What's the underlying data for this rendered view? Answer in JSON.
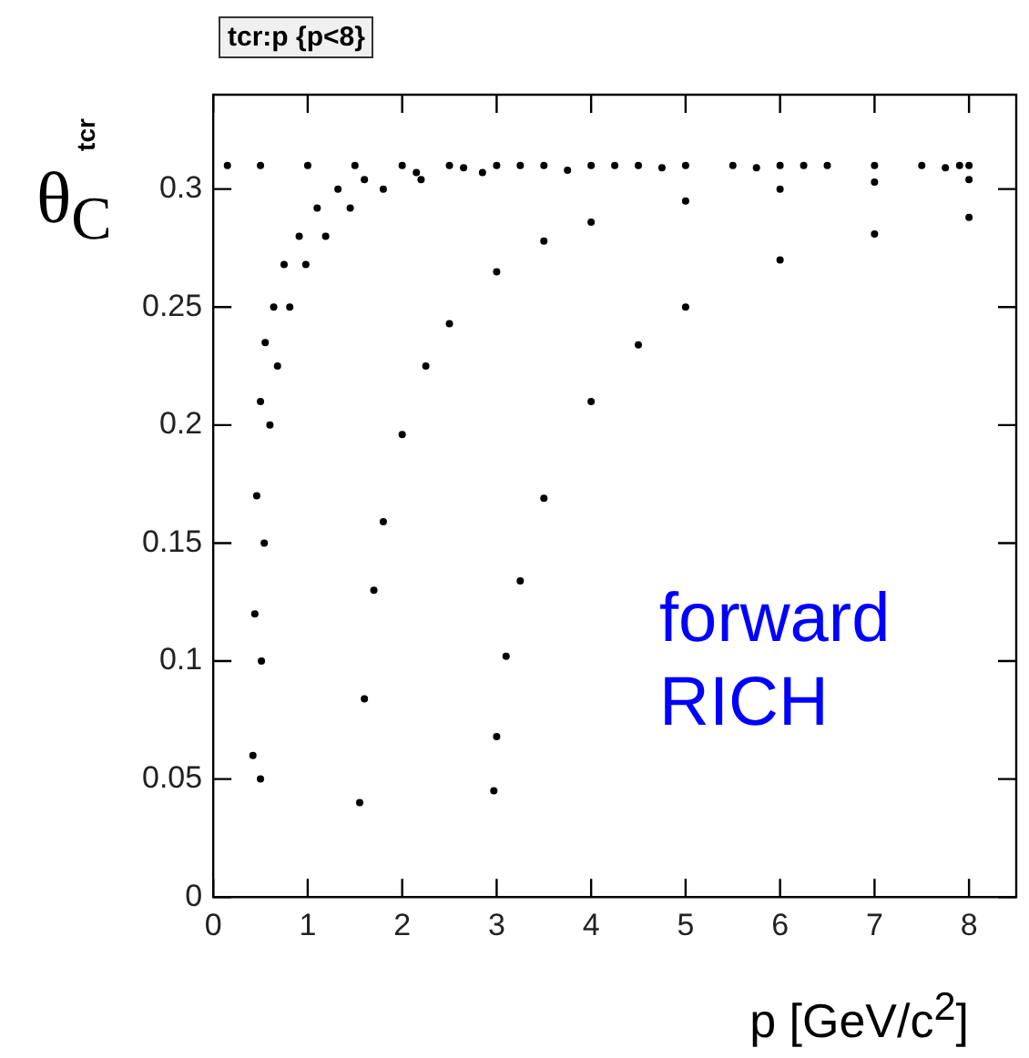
{
  "chart_data": {
    "type": "scatter",
    "title": "tcr:p {p<8}",
    "xlabel": "p [GeV/c$^{2}$]",
    "ylabel": "tcr",
    "annotations": [
      "θ$_{C}$",
      "forward RICH"
    ],
    "xlim": [
      0,
      8.5
    ],
    "ylim": [
      0,
      0.34
    ],
    "xticks": [
      0,
      1,
      2,
      3,
      4,
      5,
      6,
      7,
      8
    ],
    "yticks": [
      0,
      0.05,
      0.1,
      0.15,
      0.2,
      0.25,
      0.3
    ],
    "grid": false,
    "legend": false,
    "marker": "circle",
    "series": [
      {
        "color": "#000000",
        "x": [
          0.15,
          0.5,
          1,
          1.5,
          2,
          2.5,
          3,
          3.5,
          4,
          4.5,
          5,
          5.5,
          6,
          6.5,
          7,
          7.5,
          8
        ],
        "values": [
          0.31,
          0.31,
          0.31,
          0.31,
          0.31,
          0.31,
          0.31,
          0.31,
          0.31,
          0.31,
          0.31,
          0.31,
          0.31,
          0.31,
          0.31,
          0.31,
          0.31
        ]
      },
      {
        "color": "#000000",
        "x": [
          0.42,
          0.44,
          0.46,
          0.5,
          0.55,
          0.64,
          0.75,
          0.91,
          1.1,
          1.32,
          1.6,
          2.15,
          2.65,
          3.25,
          4.25,
          6.25,
          7.9
        ],
        "values": [
          0.06,
          0.12,
          0.17,
          0.21,
          0.235,
          0.25,
          0.268,
          0.28,
          0.292,
          0.3,
          0.304,
          0.307,
          0.309,
          0.31,
          0.31,
          0.31,
          0.31
        ]
      },
      {
        "color": "#000000",
        "x": [
          0.5,
          0.51,
          0.54,
          0.6,
          0.68,
          0.81,
          0.98,
          1.19,
          1.45,
          1.8,
          2.2,
          2.85,
          3.75,
          4.75,
          5.75,
          7.75
        ],
        "values": [
          0.05,
          0.1,
          0.15,
          0.2,
          0.225,
          0.25,
          0.268,
          0.28,
          0.292,
          0.3,
          0.304,
          0.307,
          0.308,
          0.309,
          0.309,
          0.309
        ]
      },
      {
        "color": "#000000",
        "x": [
          1.55,
          1.6,
          1.7,
          1.8,
          2,
          2.25,
          2.5,
          3,
          3.5,
          4,
          5,
          6,
          7,
          8
        ],
        "values": [
          0.04,
          0.084,
          0.13,
          0.159,
          0.196,
          0.225,
          0.243,
          0.265,
          0.278,
          0.286,
          0.295,
          0.3,
          0.303,
          0.304
        ]
      },
      {
        "color": "#000000",
        "x": [
          2.97,
          3,
          3.1,
          3.25,
          3.5,
          4,
          4.5,
          5,
          6,
          7,
          8
        ],
        "values": [
          0.045,
          0.068,
          0.102,
          0.134,
          0.169,
          0.21,
          0.234,
          0.25,
          0.27,
          0.281,
          0.288
        ]
      }
    ]
  }
}
